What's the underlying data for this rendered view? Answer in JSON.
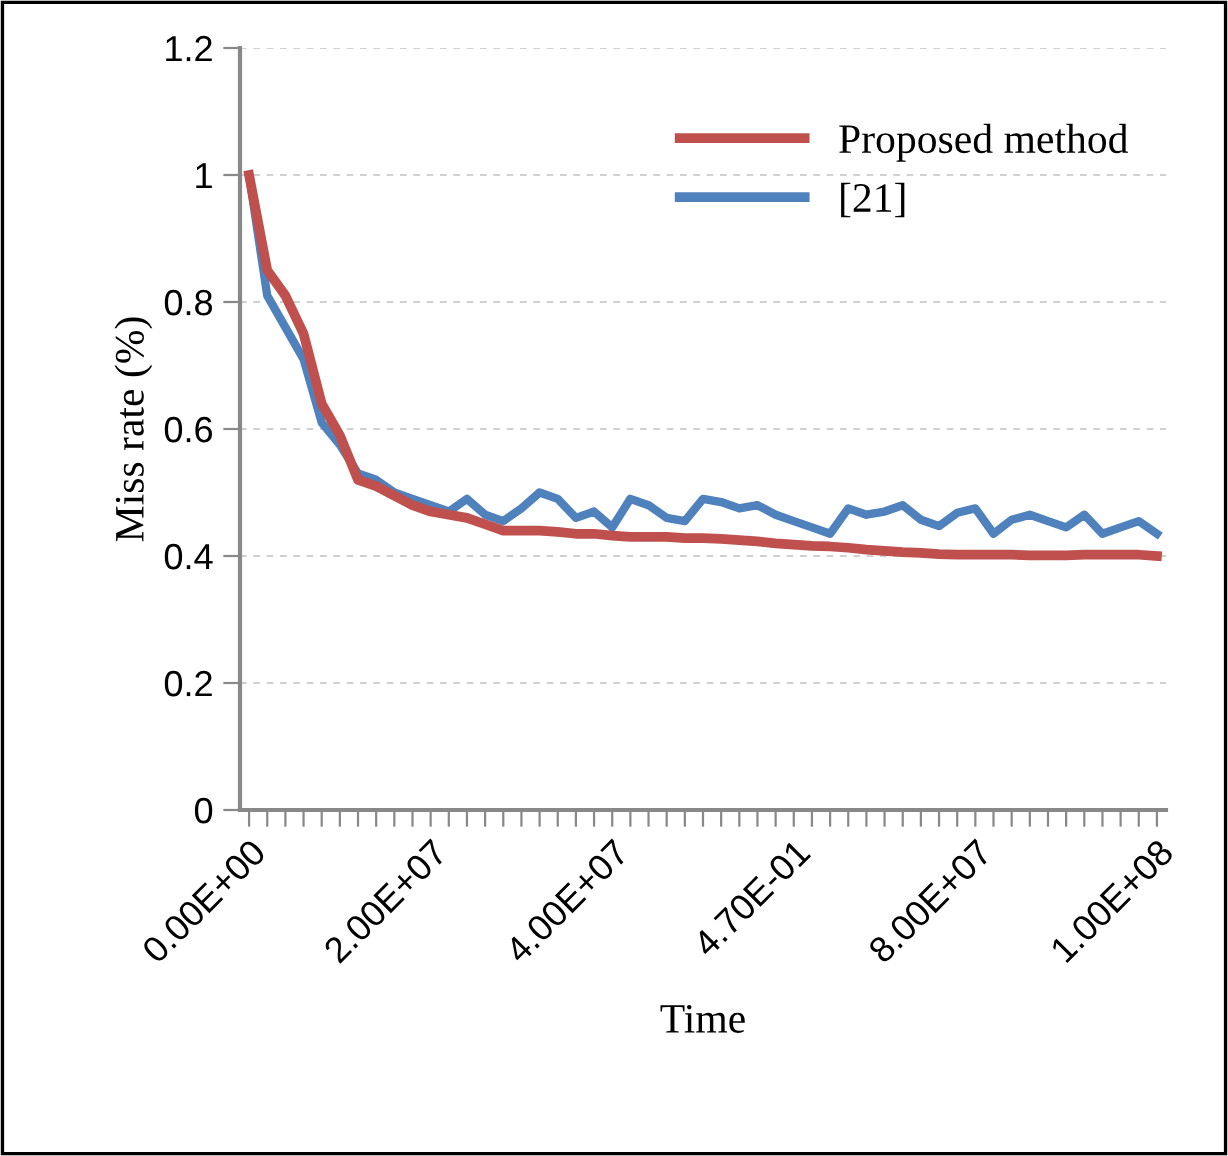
{
  "chart_data": {
    "type": "line",
    "xlabel": "Time",
    "ylabel": "Miss rate (%)",
    "categories": [
      "0.00E+00",
      null,
      null,
      null,
      null,
      null,
      null,
      null,
      null,
      null,
      "2.00E+07",
      null,
      null,
      null,
      null,
      null,
      null,
      null,
      null,
      null,
      "4.00E+07",
      null,
      null,
      null,
      null,
      null,
      null,
      null,
      null,
      null,
      "4.70E-01",
      null,
      null,
      null,
      null,
      null,
      null,
      null,
      null,
      null,
      "8.00E+07",
      null,
      null,
      null,
      null,
      null,
      null,
      null,
      null,
      null,
      "1.00E+08"
    ],
    "series": [
      {
        "name": "Proposed method",
        "color": "#c0504d",
        "values": [
          1.0,
          0.85,
          0.81,
          0.75,
          0.64,
          0.59,
          0.52,
          0.51,
          0.495,
          0.48,
          0.47,
          0.465,
          0.46,
          0.45,
          0.44,
          0.44,
          0.44,
          0.438,
          0.435,
          0.435,
          0.432,
          0.43,
          0.43,
          0.43,
          0.428,
          0.428,
          0.427,
          0.425,
          0.423,
          0.42,
          0.418,
          0.416,
          0.415,
          0.413,
          0.41,
          0.408,
          0.406,
          0.405,
          0.403,
          0.402,
          0.402,
          0.402,
          0.402,
          0.401,
          0.401,
          0.401,
          0.402,
          0.402,
          0.402,
          0.402,
          0.4
        ]
      },
      {
        "name": "[21]",
        "color": "#4f81bd",
        "values": [
          1.0,
          0.81,
          0.76,
          0.71,
          0.61,
          0.575,
          0.53,
          0.52,
          0.5,
          0.49,
          0.48,
          0.47,
          0.49,
          0.465,
          0.455,
          0.475,
          0.5,
          0.49,
          0.46,
          0.47,
          0.445,
          0.49,
          0.48,
          0.46,
          0.455,
          0.49,
          0.485,
          0.475,
          0.48,
          0.465,
          0.455,
          0.445,
          0.435,
          0.475,
          0.465,
          0.47,
          0.48,
          0.457,
          0.447,
          0.468,
          0.475,
          0.435,
          0.457,
          0.465,
          0.455,
          0.445,
          0.465,
          0.435,
          0.445,
          0.455,
          0.435
        ]
      }
    ],
    "ylim": [
      0,
      1.2
    ],
    "yticks": [
      0,
      0.2,
      0.4,
      0.6,
      0.8,
      1,
      1.2
    ],
    "grid": "y",
    "legend": "top right",
    "marker": "none",
    "line_style": "solid"
  }
}
